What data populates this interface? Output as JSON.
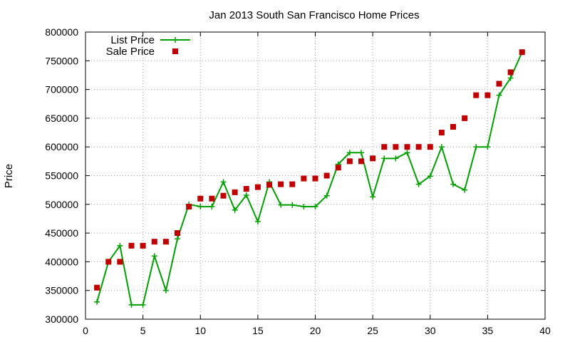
{
  "chart_data": {
    "type": "line",
    "title": "Jan 2013 South San Francisco Home Prices",
    "xlabel": "",
    "ylabel": "Price",
    "xlim": [
      0,
      40
    ],
    "ylim": [
      300000,
      800000
    ],
    "x_ticks": [
      0,
      5,
      10,
      15,
      20,
      25,
      30,
      35,
      40
    ],
    "y_ticks": [
      300000,
      350000,
      400000,
      450000,
      500000,
      550000,
      600000,
      650000,
      700000,
      750000,
      800000
    ],
    "grid": true,
    "legend_position": "top-left",
    "series": [
      {
        "name": "List Price",
        "style": "line+cross",
        "color": "#00a000",
        "x": [
          1,
          2,
          3,
          4,
          5,
          6,
          7,
          8,
          9,
          10,
          11,
          12,
          13,
          14,
          15,
          16,
          17,
          18,
          19,
          20,
          21,
          22,
          23,
          24,
          25,
          26,
          27,
          28,
          29,
          30,
          31,
          32,
          33,
          34,
          35,
          36,
          37,
          38
        ],
        "values": [
          330000,
          400000,
          428000,
          325000,
          325000,
          410000,
          350000,
          440000,
          500000,
          496000,
          496000,
          539000,
          490000,
          516000,
          470000,
          539000,
          499000,
          499000,
          496000,
          496000,
          515000,
          570000,
          590000,
          590000,
          513000,
          580000,
          580000,
          590000,
          535000,
          549000,
          600000,
          535000,
          525000,
          600000,
          600000,
          690000,
          720000,
          765000
        ]
      },
      {
        "name": "Sale Price",
        "style": "points",
        "color": "#c00000",
        "x": [
          1,
          2,
          3,
          4,
          5,
          6,
          7,
          8,
          9,
          10,
          11,
          12,
          13,
          14,
          15,
          16,
          17,
          18,
          19,
          20,
          21,
          22,
          23,
          24,
          25,
          26,
          27,
          28,
          29,
          30,
          31,
          32,
          33,
          34,
          35,
          36,
          37,
          38
        ],
        "values": [
          355000,
          400000,
          400000,
          428000,
          428000,
          435000,
          435000,
          450000,
          496000,
          510000,
          510000,
          515000,
          521000,
          527000,
          530000,
          534000,
          535000,
          535000,
          545000,
          545000,
          550000,
          564000,
          575000,
          575000,
          580000,
          600000,
          600000,
          600000,
          600000,
          600000,
          625000,
          635000,
          650000,
          690000,
          690000,
          710000,
          730000,
          765000
        ]
      }
    ]
  }
}
